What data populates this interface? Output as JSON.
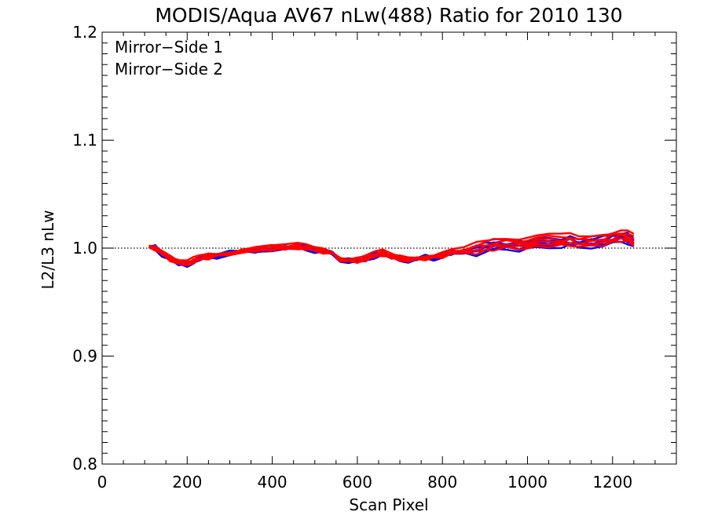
{
  "chart_data": {
    "type": "line",
    "title": "MODIS/Aqua AV67 nLw(488) Ratio for 2010 130",
    "xlabel": "Scan Pixel",
    "ylabel": "L2/L3 nLw",
    "xlim": [
      0,
      1350
    ],
    "ylim": [
      0.8,
      1.2
    ],
    "xticks": [
      0,
      200,
      400,
      600,
      800,
      1000,
      1200
    ],
    "xtick_labels": [
      "0",
      "200",
      "400",
      "600",
      "800",
      "1000",
      "1200"
    ],
    "yticks": [
      0.8,
      0.9,
      1.0,
      1.1,
      1.2
    ],
    "ytick_labels": [
      "0.8",
      "0.9",
      "1.0",
      "1.1",
      "1.2"
    ],
    "reference_line": {
      "y": 1.0,
      "style": "dotted"
    },
    "legend": {
      "placement": "top-left",
      "entries": [
        "Mirror−Side 1",
        "Mirror−Side 2"
      ]
    },
    "base_profile": {
      "x": [
        110,
        125,
        140,
        160,
        180,
        200,
        215,
        230,
        250,
        270,
        300,
        330,
        360,
        400,
        430,
        460,
        480,
        500,
        520,
        540,
        560,
        580,
        600,
        620,
        640,
        660,
        680,
        700,
        720,
        740,
        760,
        780,
        800,
        820,
        850,
        880,
        900,
        920,
        950,
        980,
        1000,
        1020,
        1050,
        1080,
        1100,
        1120,
        1150,
        1180,
        1200,
        1220,
        1235,
        1250
      ],
      "y": [
        1.001,
        1.0,
        0.995,
        0.99,
        0.986,
        0.985,
        0.988,
        0.99,
        0.992,
        0.993,
        0.995,
        0.997,
        0.998,
        1.0,
        1.0,
        1.001,
        1.0,
        0.998,
        0.997,
        0.995,
        0.99,
        0.988,
        0.988,
        0.99,
        0.993,
        0.995,
        0.992,
        0.99,
        0.989,
        0.99,
        0.991,
        0.991,
        0.993,
        0.995,
        0.997,
        0.998,
        1.0,
        1.002,
        1.003,
        1.002,
        1.003,
        1.004,
        1.005,
        1.005,
        1.006,
        1.004,
        1.005,
        1.006,
        1.008,
        1.01,
        1.009,
        1.005
      ]
    },
    "series": [
      {
        "name": "Mirror−Side 1",
        "color": "#0000ff",
        "offsets": [
          -0.004,
          -0.002,
          0.0,
          0.002,
          0.004
        ]
      },
      {
        "name": "Mirror−Side 2",
        "color": "#ff0000",
        "offsets": [
          -0.003,
          -0.001,
          0.001,
          0.003,
          0.005,
          0.007
        ]
      }
    ]
  }
}
